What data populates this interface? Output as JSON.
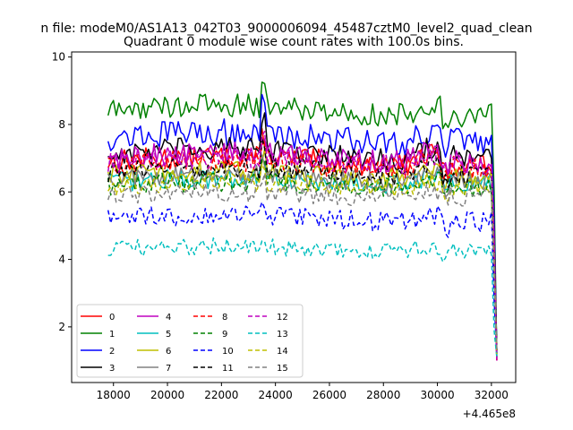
{
  "figure": {
    "suptitle": "n file: modeM0/AS1A13_042T03_9000006094_45487cztM0_level2_quad_clean"
  },
  "chart_data": {
    "type": "line",
    "title": "Quadrant 0 module wise count rates with 100.0s bins.",
    "xlabel": "",
    "ylabel": "",
    "x_offset_label": "+4.465e8",
    "xlim": [
      16450,
      32900
    ],
    "ylim": [
      0.35,
      10.15
    ],
    "xticks": [
      18000,
      20000,
      22000,
      24000,
      26000,
      28000,
      30000,
      32000
    ],
    "xtick_labels": [
      "18000",
      "20000",
      "22000",
      "24000",
      "26000",
      "28000",
      "30000",
      "32000"
    ],
    "yticks": [
      2,
      4,
      6,
      8,
      10
    ],
    "ytick_labels": [
      "2",
      "4",
      "6",
      "8",
      "10"
    ],
    "grid": false,
    "legend_placement": "lower-left",
    "legend_columns": 4,
    "x_range": [
      17800,
      32200
    ],
    "bin_seconds": 100,
    "series": [
      {
        "name": "0",
        "color": "#ff0000",
        "dash": "solid",
        "level": 6.9,
        "noise": 0.35,
        "amp": 0.4
      },
      {
        "name": "1",
        "color": "#008000",
        "dash": "solid",
        "level": 8.4,
        "noise": 0.35,
        "amp": 0.5
      },
      {
        "name": "2",
        "color": "#0000ff",
        "dash": "solid",
        "level": 7.6,
        "noise": 0.4,
        "amp": 0.5
      },
      {
        "name": "3",
        "color": "#000000",
        "dash": "solid",
        "level": 7.1,
        "noise": 0.35,
        "amp": 0.5
      },
      {
        "name": "4",
        "color": "#bf00bf",
        "dash": "solid",
        "level": 7.0,
        "noise": 0.35,
        "amp": 0.4
      },
      {
        "name": "5",
        "color": "#00bfbf",
        "dash": "solid",
        "level": 6.3,
        "noise": 0.3,
        "amp": 0.3
      },
      {
        "name": "6",
        "color": "#bfbf00",
        "dash": "solid",
        "level": 6.5,
        "noise": 0.3,
        "amp": 0.3
      },
      {
        "name": "7",
        "color": "#808080",
        "dash": "solid",
        "level": 6.4,
        "noise": 0.3,
        "amp": 0.3
      },
      {
        "name": "8",
        "color": "#ff0000",
        "dash": "dashed",
        "level": 6.8,
        "noise": 0.35,
        "amp": 0.4
      },
      {
        "name": "9",
        "color": "#008000",
        "dash": "dashed",
        "level": 6.2,
        "noise": 0.3,
        "amp": 0.3
      },
      {
        "name": "10",
        "color": "#0000ff",
        "dash": "dashed",
        "level": 5.2,
        "noise": 0.3,
        "amp": 0.3
      },
      {
        "name": "11",
        "color": "#000000",
        "dash": "dashed",
        "level": 6.6,
        "noise": 0.3,
        "amp": 0.4
      },
      {
        "name": "12",
        "color": "#bf00bf",
        "dash": "dashed",
        "level": 6.9,
        "noise": 0.35,
        "amp": 0.4
      },
      {
        "name": "13",
        "color": "#00bfbf",
        "dash": "dashed",
        "level": 4.3,
        "noise": 0.25,
        "amp": 0.25
      },
      {
        "name": "14",
        "color": "#bfbf00",
        "dash": "dashed",
        "level": 6.2,
        "noise": 0.3,
        "amp": 0.3
      },
      {
        "name": "15",
        "color": "#808080",
        "dash": "dashed",
        "level": 5.9,
        "noise": 0.3,
        "amp": 0.3
      }
    ]
  }
}
